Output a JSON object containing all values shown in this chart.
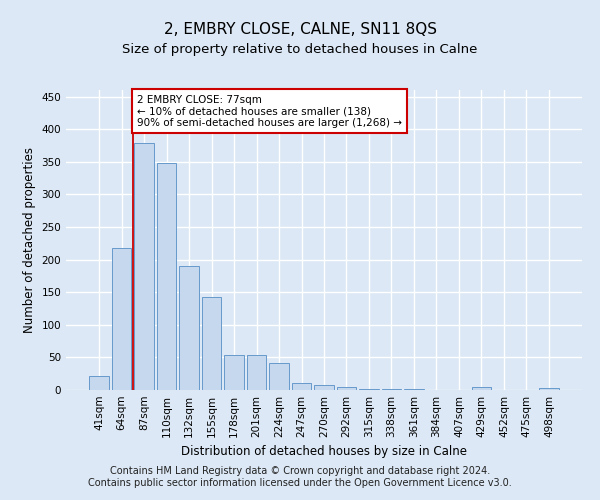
{
  "title": "2, EMBRY CLOSE, CALNE, SN11 8QS",
  "subtitle": "Size of property relative to detached houses in Calne",
  "xlabel": "Distribution of detached houses by size in Calne",
  "ylabel": "Number of detached properties",
  "footer_line1": "Contains HM Land Registry data © Crown copyright and database right 2024.",
  "footer_line2": "Contains public sector information licensed under the Open Government Licence v3.0.",
  "categories": [
    "41sqm",
    "64sqm",
    "87sqm",
    "110sqm",
    "132sqm",
    "155sqm",
    "178sqm",
    "201sqm",
    "224sqm",
    "247sqm",
    "270sqm",
    "292sqm",
    "315sqm",
    "338sqm",
    "361sqm",
    "384sqm",
    "407sqm",
    "429sqm",
    "452sqm",
    "475sqm",
    "498sqm"
  ],
  "values": [
    22,
    218,
    378,
    348,
    190,
    143,
    54,
    54,
    41,
    11,
    8,
    4,
    2,
    2,
    1,
    0,
    0,
    4,
    0,
    0,
    3
  ],
  "bar_color": "#c5d8ee",
  "bar_edge_color": "#6699cc",
  "annotation_line1": "2 EMBRY CLOSE: 77sqm",
  "annotation_line2": "← 10% of detached houses are smaller (138)",
  "annotation_line3": "90% of semi-detached houses are larger (1,268) →",
  "annotation_box_color": "#ffffff",
  "annotation_box_edge_color": "#cc0000",
  "vline_x": 1.5,
  "vline_color": "#cc0000",
  "ylim": [
    0,
    460
  ],
  "yticks": [
    0,
    50,
    100,
    150,
    200,
    250,
    300,
    350,
    400,
    450
  ],
  "background_color": "#dce8f5",
  "grid_color": "#ffffff",
  "title_fontsize": 11,
  "subtitle_fontsize": 9.5,
  "axis_label_fontsize": 8.5,
  "tick_fontsize": 7.5,
  "annotation_fontsize": 7.5,
  "footer_fontsize": 7
}
